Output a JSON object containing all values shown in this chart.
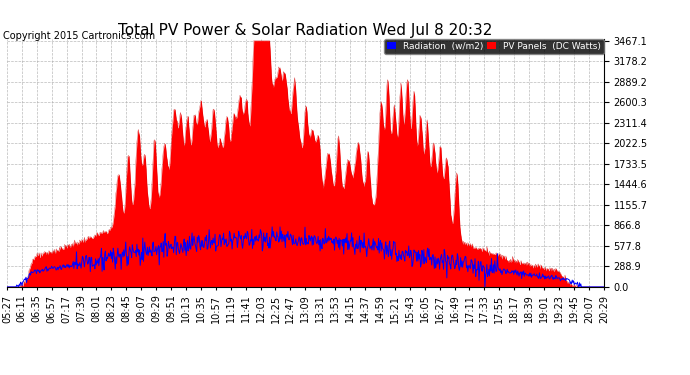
{
  "title": "Total PV Power & Solar Radiation Wed Jul 8 20:32",
  "copyright": "Copyright 2015 Cartronics.com",
  "yticks": [
    0.0,
    288.9,
    577.8,
    866.8,
    1155.7,
    1444.6,
    1733.5,
    2022.5,
    2311.4,
    2600.3,
    2889.2,
    3178.2,
    3467.1
  ],
  "ymax": 3467.1,
  "legend_labels": [
    "Radiation  (w/m2)",
    "PV Panels  (DC Watts)"
  ],
  "legend_colors": [
    "#0000ff",
    "#ff0000"
  ],
  "bg_color": "#ffffff",
  "grid_color": "#aaaaaa",
  "title_fontsize": 11,
  "copyright_fontsize": 7,
  "tick_fontsize": 7,
  "tick_labels": [
    "05:27",
    "06:11",
    "06:35",
    "06:57",
    "07:17",
    "07:39",
    "08:01",
    "08:23",
    "08:45",
    "09:07",
    "09:29",
    "09:51",
    "10:13",
    "10:35",
    "10:57",
    "11:19",
    "11:41",
    "12:03",
    "12:25",
    "12:47",
    "13:09",
    "13:31",
    "13:53",
    "14:15",
    "14:37",
    "14:59",
    "15:21",
    "15:43",
    "16:05",
    "16:27",
    "16:49",
    "17:11",
    "17:33",
    "17:55",
    "18:17",
    "18:39",
    "19:01",
    "19:23",
    "19:45",
    "20:07",
    "20:29"
  ]
}
